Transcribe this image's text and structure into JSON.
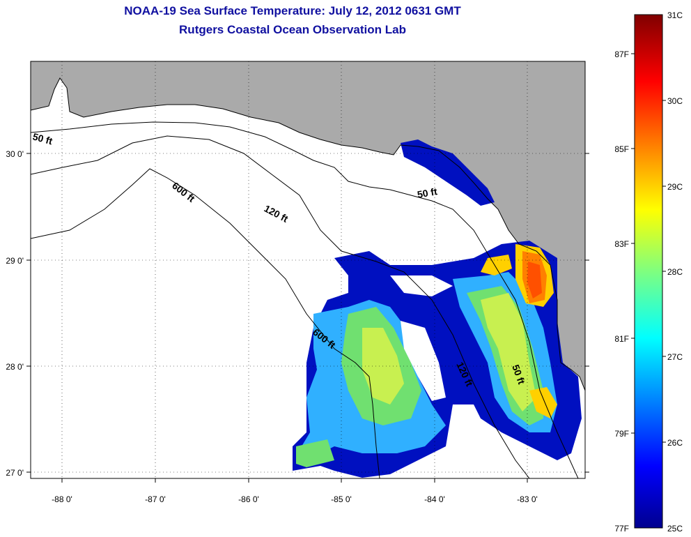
{
  "title": "NOAA-19 Sea Surface Temperature:  July 12, 2012 0631 GMT",
  "subtitle": "Rutgers Coastal Ocean Observation Lab",
  "axes": {
    "lon_ticks": [
      "-88 0'",
      "-87 0'",
      "-86 0'",
      "-85 0'",
      "-84 0'",
      "-83 0'"
    ],
    "lat_ticks": [
      "27 0'",
      "28 0'",
      "29 0'",
      "30 0'"
    ]
  },
  "contours": {
    "c50_left": "50 ft",
    "c50_right": "50 ft",
    "c50_lower": "50 ft",
    "c120": "120 ft",
    "c120_lower": "120 ft",
    "c600": "600 ft",
    "c600_lower": "600 ft"
  },
  "colorbar": {
    "celsius": [
      "31C",
      "30C",
      "29C",
      "28C",
      "27C",
      "26C",
      "25C"
    ],
    "fahrenheit": [
      "87F",
      "85F",
      "83F",
      "81F",
      "79F",
      "77F"
    ]
  },
  "colors": {
    "land": "#aaaaaa",
    "ocean_nodata": "#ffffff",
    "title": "#1010a0"
  }
}
